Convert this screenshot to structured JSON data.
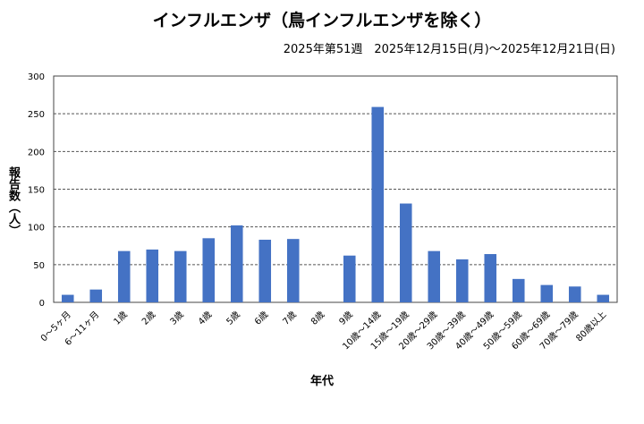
{
  "chart_data": {
    "type": "bar",
    "title": "インフルエンザ（鳥インフルエンザを除く）",
    "subtitle": "2025年第51週　2025年12月15日(月)～2025年12月21日(日)",
    "xlabel": "年代",
    "ylabel": "報告数（人）",
    "ylim": [
      0,
      300
    ],
    "yticks": [
      0,
      50,
      100,
      150,
      200,
      250,
      300
    ],
    "grid": true,
    "color": "#4472C4",
    "categories": [
      "0～5ヶ月",
      "6～11ヶ月",
      "1歳",
      "2歳",
      "3歳",
      "4歳",
      "5歳",
      "6歳",
      "7歳",
      "8歳",
      "9歳",
      "10歳～14歳",
      "15歳～19歳",
      "20歳～29歳",
      "30歳～39歳",
      "40歳～49歳",
      "50歳～59歳",
      "60歳～69歳",
      "70歳～79歳",
      "80歳以上"
    ],
    "values": [
      10,
      17,
      68,
      70,
      68,
      85,
      102,
      83,
      84,
      0,
      62,
      259,
      131,
      68,
      57,
      64,
      31,
      23,
      21,
      10
    ]
  }
}
